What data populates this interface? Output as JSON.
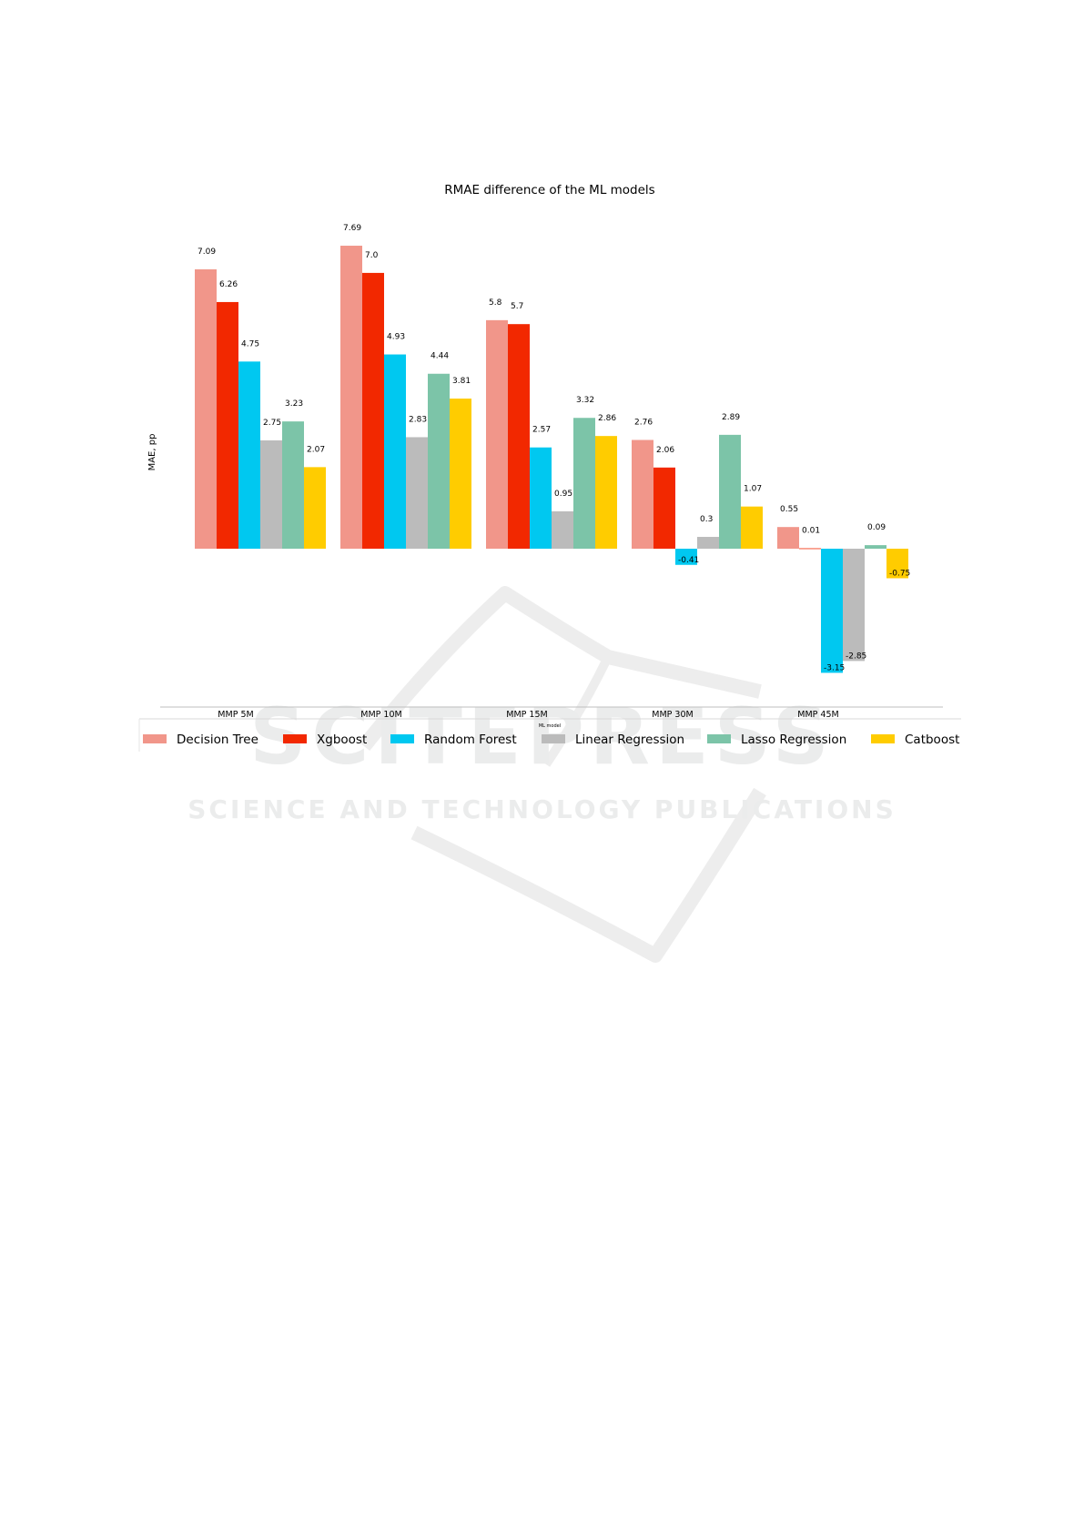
{
  "watermark": {
    "brand": "SCITEPRESS",
    "subtitle": "SCIENCE AND TECHNOLOGY PUBLICATIONS"
  },
  "chart_data": {
    "type": "bar",
    "title": "RMAE difference of the ML models",
    "xlabel": "ML model",
    "ylabel": "MAE, pp",
    "grid": false,
    "legend": "bottom",
    "ylim": [
      -3.7,
      8.3
    ],
    "categories": [
      "MMP 5M",
      "MMP 10M",
      "MMP 15M",
      "MMP 30M",
      "MMP 45M"
    ],
    "series": [
      {
        "name": "Decision Tree",
        "color": "#f1968a",
        "values": [
          7.09,
          7.69,
          5.8,
          2.76,
          0.55
        ],
        "labels": [
          "7.09",
          "7.69",
          "5.8",
          "2.76",
          "0.55"
        ]
      },
      {
        "name": "Xgboost",
        "color": "#f22800",
        "values": [
          6.26,
          7.0,
          5.7,
          2.06,
          0.01
        ],
        "labels": [
          "6.26",
          "7.0",
          "5.7",
          "2.06",
          "0.01"
        ]
      },
      {
        "name": "Random Forest",
        "color": "#00c8f0",
        "values": [
          4.75,
          4.93,
          2.57,
          -0.41,
          -3.15
        ],
        "labels": [
          "4.75",
          "4.93",
          "2.57",
          "-0.41",
          "-3.15"
        ]
      },
      {
        "name": "Linear Regression",
        "color": "#bbbbbb",
        "values": [
          2.75,
          2.83,
          0.95,
          0.3,
          -2.85
        ],
        "labels": [
          "2.75",
          "2.83",
          "0.95",
          "0.3",
          "-2.85"
        ]
      },
      {
        "name": "Lasso Regression",
        "color": "#7cc4a8",
        "values": [
          3.23,
          4.44,
          3.32,
          2.89,
          0.09
        ],
        "labels": [
          "3.23",
          "4.44",
          "3.32",
          "2.89",
          "0.09"
        ]
      },
      {
        "name": "Catboost",
        "color": "#ffcc00",
        "values": [
          2.07,
          3.81,
          2.86,
          1.07,
          -0.75
        ],
        "labels": [
          "2.07",
          "3.81",
          "2.86",
          "1.07",
          "-0.75"
        ]
      }
    ]
  }
}
